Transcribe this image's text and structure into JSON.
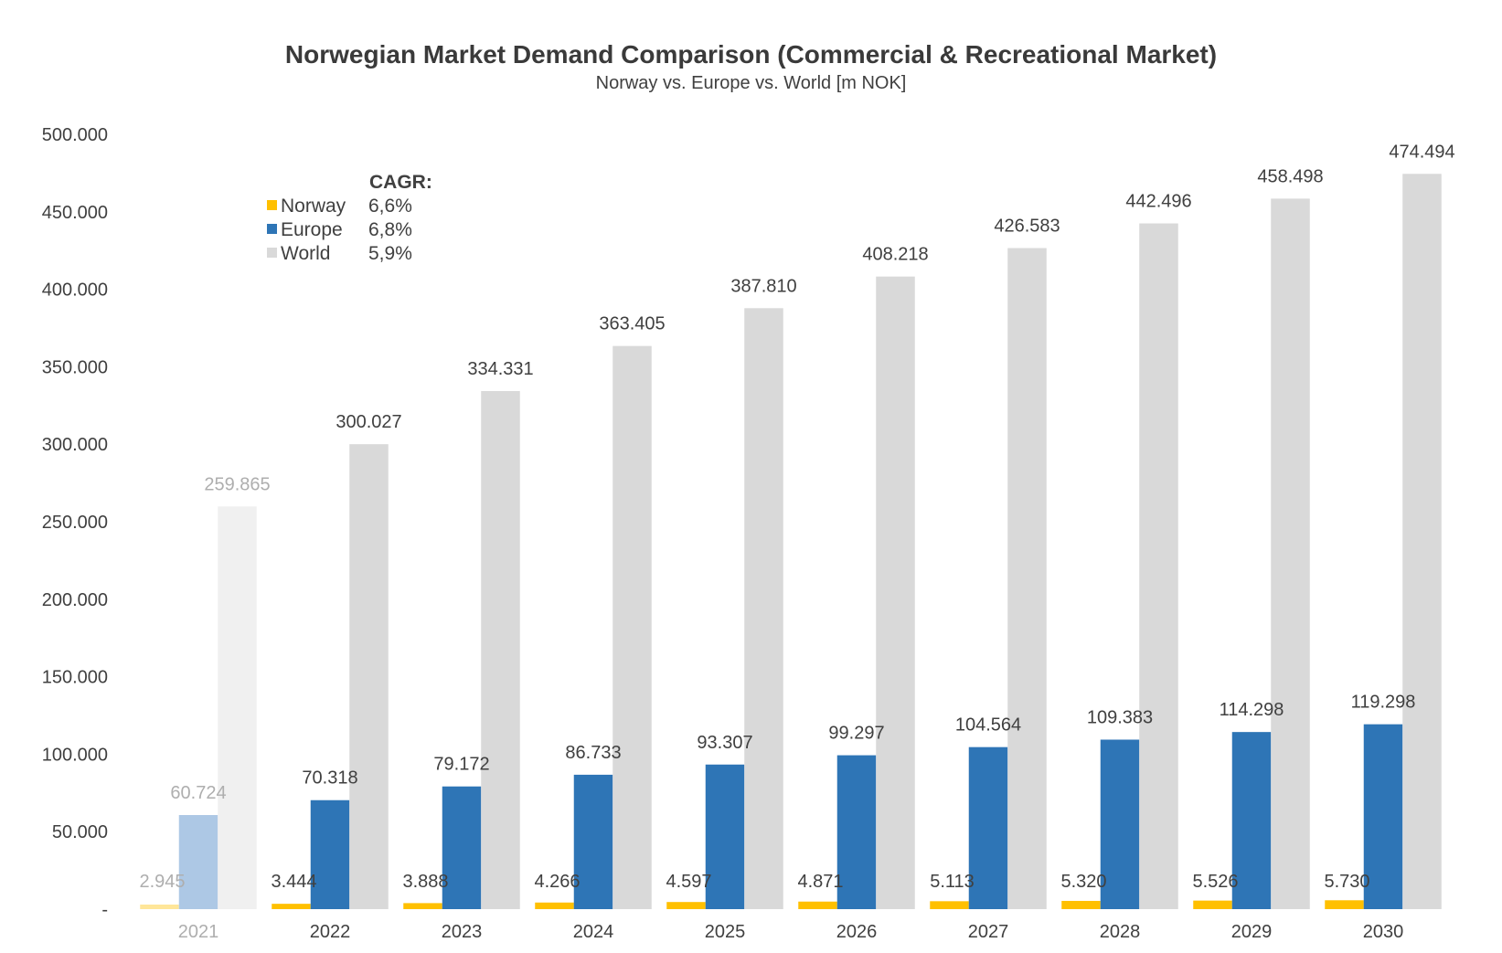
{
  "chart_data": {
    "type": "bar",
    "title": "Norwegian Market Demand Comparison (Commercial & Recreational Market)",
    "subtitle": "Norway vs. Europe vs. World [m NOK]",
    "xlabel": "",
    "ylabel": "",
    "ylim": [
      0,
      500000
    ],
    "yticks": [
      0,
      50000,
      100000,
      150000,
      200000,
      250000,
      300000,
      350000,
      400000,
      450000,
      500000
    ],
    "ytick_labels": [
      "-",
      "50.000",
      "100.000",
      "150.000",
      "200.000",
      "250.000",
      "300.000",
      "350.000",
      "400.000",
      "450.000",
      "500.000"
    ],
    "grid": false,
    "categories": [
      "2021",
      "2022",
      "2023",
      "2024",
      "2025",
      "2026",
      "2027",
      "2028",
      "2029",
      "2030"
    ],
    "faded_categories": [
      "2021"
    ],
    "series": [
      {
        "name": "Norway",
        "color": "#FFC000",
        "faded_color": "#FFE699",
        "values": [
          2945,
          3444,
          3888,
          4266,
          4597,
          4871,
          5113,
          5320,
          5526,
          5730
        ],
        "labels": [
          "2.945",
          "3.444",
          "3.888",
          "4.266",
          "4.597",
          "4.871",
          "5.113",
          "5.320",
          "5.526",
          "5.730"
        ]
      },
      {
        "name": "Europe",
        "color": "#2E75B6",
        "faded_color": "#ADC8E5",
        "values": [
          60724,
          70318,
          79172,
          86733,
          93307,
          99297,
          104564,
          109383,
          114298,
          119298
        ],
        "labels": [
          "60.724",
          "70.318",
          "79.172",
          "86.733",
          "93.307",
          "99.297",
          "104.564",
          "109.383",
          "114.298",
          "119.298"
        ]
      },
      {
        "name": "World",
        "color": "#D9D9D9",
        "faded_color": "#F0F0F0",
        "values": [
          259865,
          300027,
          334331,
          363405,
          387810,
          408218,
          426583,
          442496,
          458498,
          474494
        ],
        "labels": [
          "259.865",
          "300.027",
          "334.331",
          "363.405",
          "387.810",
          "408.218",
          "426.583",
          "442.496",
          "458.498",
          "474.494"
        ]
      }
    ],
    "legend": {
      "placement": "top-left",
      "header": "CAGR:",
      "entries": [
        {
          "name": "Norway",
          "cagr": "6,6%"
        },
        {
          "name": "Europe",
          "cagr": "6,8%"
        },
        {
          "name": "World",
          "cagr": "5,9%"
        }
      ]
    },
    "label_color": "#404040",
    "faded_label_color": "#AEAEAE"
  }
}
